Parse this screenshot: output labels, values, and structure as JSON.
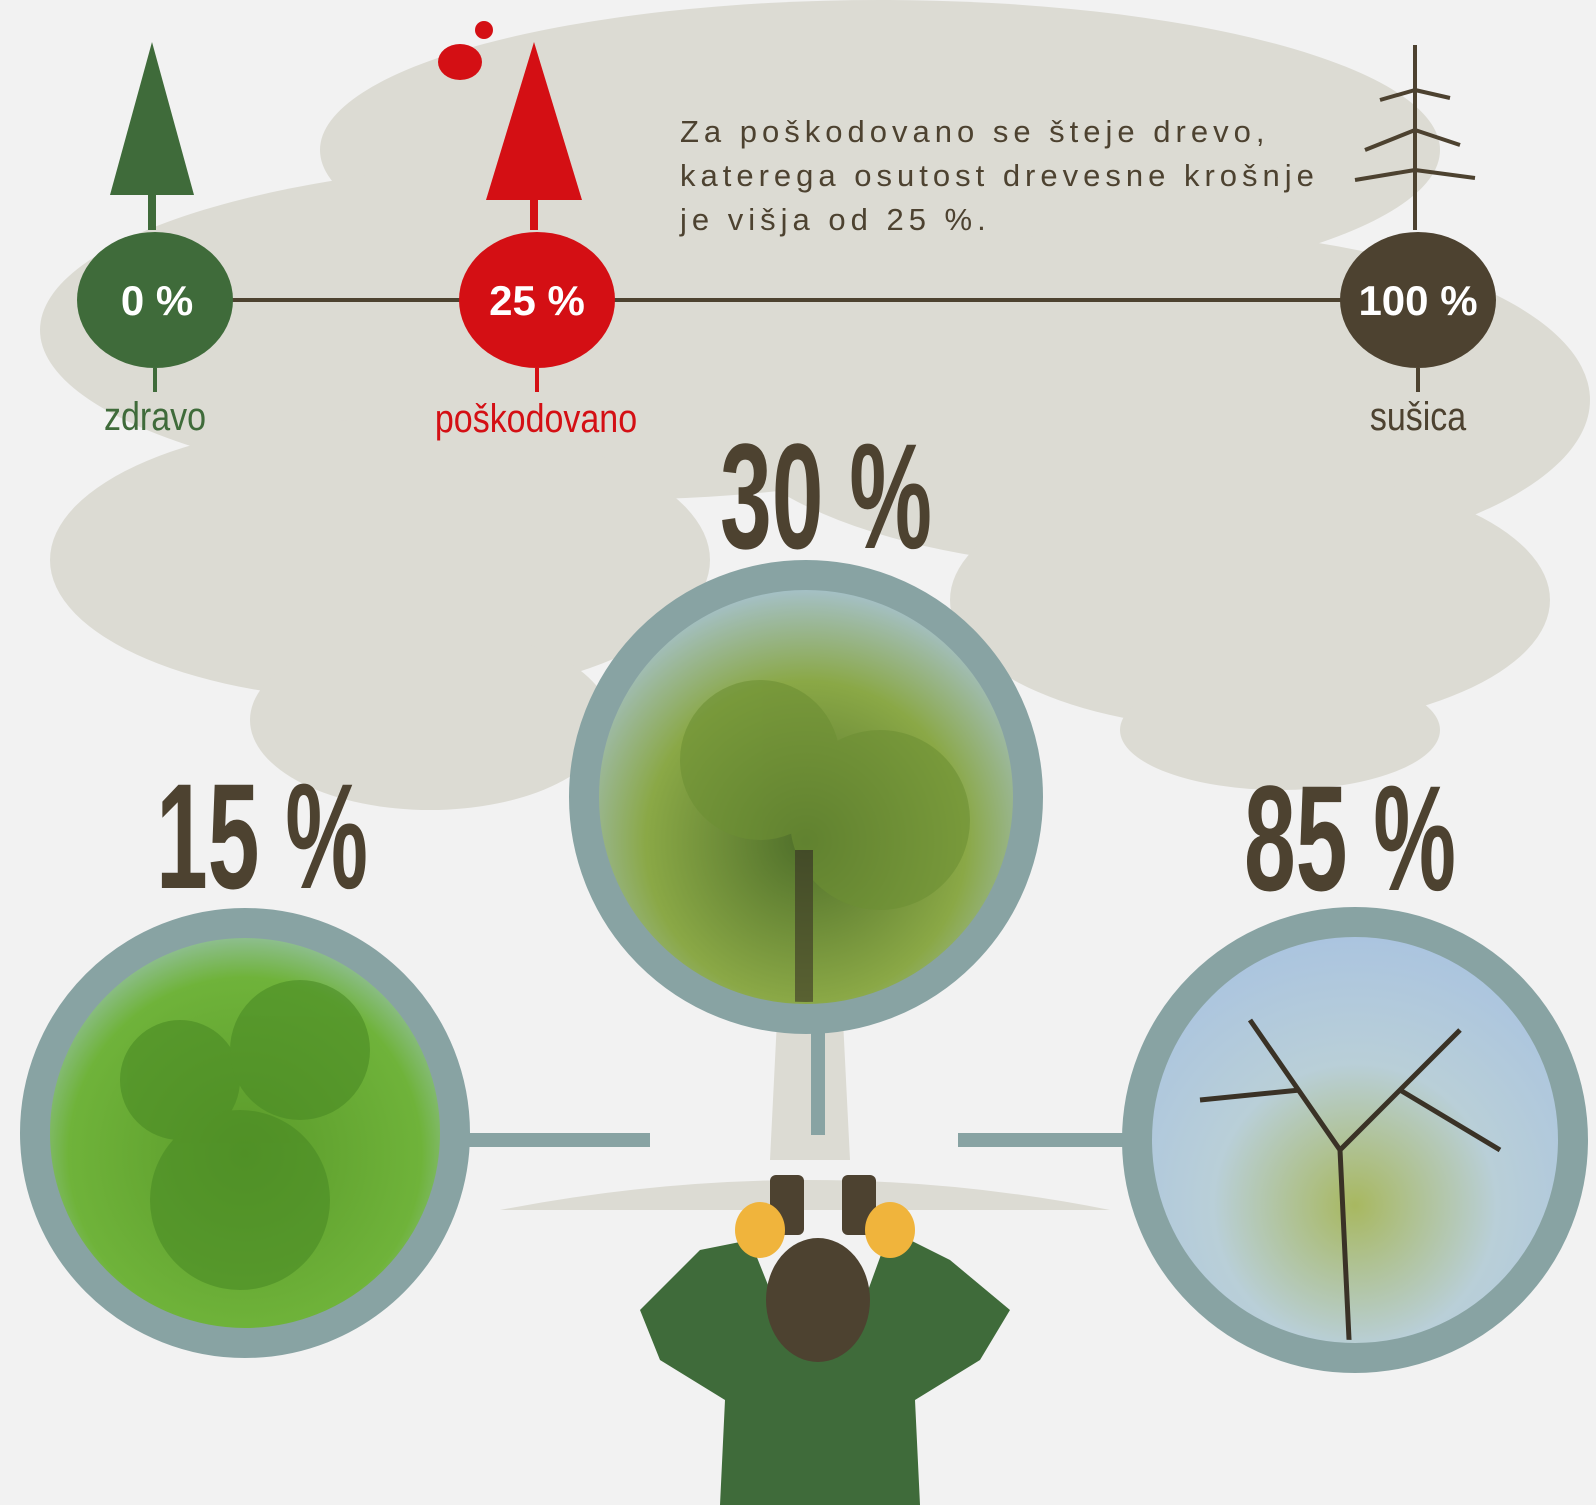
{
  "scale": {
    "nodes": [
      {
        "value": "0 %",
        "label": "zdravo"
      },
      {
        "value": "25 %",
        "label": "poškodovano"
      },
      {
        "value": "100 %",
        "label": "sušica"
      }
    ],
    "note": [
      "Za poškodovano se šteje drevo,",
      "katerega osutost drevesne krošnje",
      "je višja od 25 %."
    ]
  },
  "examples": [
    {
      "defoliation": "15 %"
    },
    {
      "defoliation": "30 %"
    },
    {
      "defoliation": "85 %"
    }
  ]
}
